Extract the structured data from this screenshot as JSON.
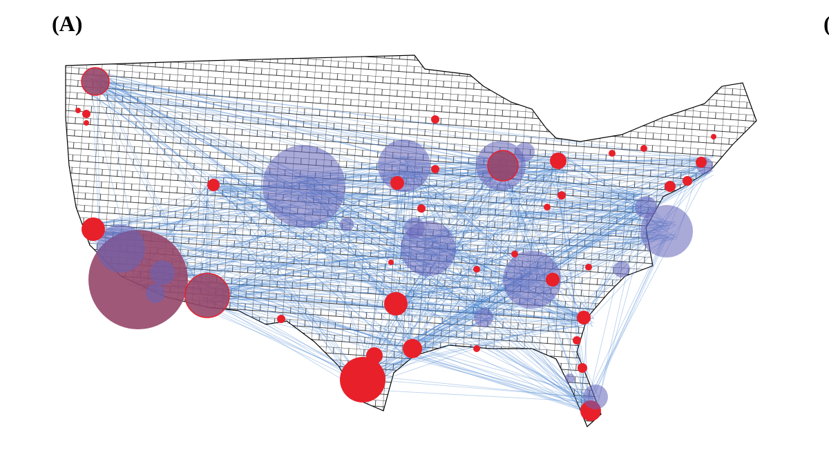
{
  "panel_label": "(A)",
  "next_panel_label": "("
}
